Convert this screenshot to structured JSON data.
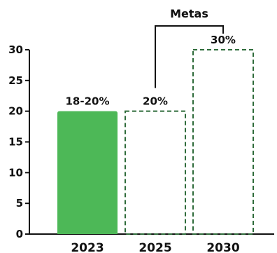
{
  "chart_data": {
    "type": "bar",
    "categories": [
      "2023",
      "2025",
      "2030"
    ],
    "values": [
      20,
      20,
      30
    ],
    "bar_styles": [
      "solid",
      "dashed",
      "dashed"
    ],
    "data_labels": [
      "18-20%",
      "20%",
      "30%"
    ],
    "yticks": [
      0,
      5,
      10,
      15,
      20,
      25,
      30
    ],
    "ylim": [
      0,
      30
    ],
    "grid": false,
    "bracket": {
      "label": "Metas",
      "from_category": "2025",
      "to_category": "2030"
    },
    "colors": {
      "solid_fill": "#4db857",
      "dashed_stroke": "#2e6b3a",
      "axis": "#111111",
      "text": "#111111"
    }
  }
}
